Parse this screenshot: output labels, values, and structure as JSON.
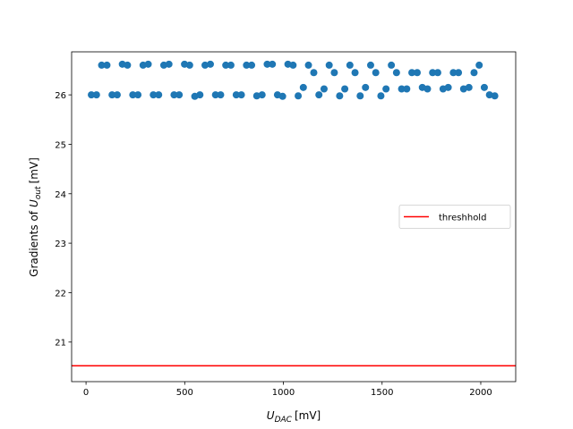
{
  "chart_data": {
    "type": "scatter",
    "xlabel": {
      "symbol": "U",
      "subscript": "DAC",
      "unit": "[mV]"
    },
    "ylabel": {
      "prefix": "Gradients of",
      "symbol": "U",
      "subscript": "out",
      "unit": "[mV]"
    },
    "xlim": [
      -73,
      2177
    ],
    "ylim": [
      20.2,
      26.87
    ],
    "xticks": [
      0,
      500,
      1000,
      1500,
      2000
    ],
    "yticks": [
      21,
      22,
      23,
      24,
      25,
      26
    ],
    "color": "#1f77b4",
    "x": [
      27,
      53,
      79,
      106,
      132,
      158,
      184,
      210,
      237,
      263,
      289,
      315,
      341,
      368,
      394,
      420,
      446,
      472,
      499,
      525,
      551,
      577,
      603,
      630,
      656,
      682,
      708,
      734,
      761,
      787,
      813,
      839,
      865,
      892,
      918,
      944,
      970,
      996,
      1023,
      1049,
      1075,
      1101,
      1127,
      1154,
      1180,
      1206,
      1232,
      1258,
      1285,
      1311,
      1337,
      1363,
      1389,
      1416,
      1442,
      1468,
      1494,
      1520,
      1547,
      1573,
      1599,
      1625,
      1651,
      1678,
      1704,
      1730,
      1756,
      1782,
      1809,
      1835,
      1861,
      1887,
      1913,
      1940,
      1966,
      1992,
      2018,
      2044,
      2071
    ],
    "values": [
      26.0,
      26.0,
      26.6,
      26.6,
      26.0,
      26.0,
      26.62,
      26.6,
      26.0,
      26.0,
      26.6,
      26.62,
      26.0,
      26.0,
      26.6,
      26.62,
      26.0,
      26.0,
      26.62,
      26.6,
      25.97,
      26.0,
      26.6,
      26.62,
      26.0,
      26.0,
      26.6,
      26.6,
      26.0,
      26.0,
      26.6,
      26.6,
      25.98,
      26.0,
      26.62,
      26.62,
      26.0,
      25.97,
      26.62,
      26.6,
      25.98,
      26.15,
      26.6,
      26.45,
      26.0,
      26.12,
      26.6,
      26.45,
      25.98,
      26.12,
      26.6,
      26.45,
      25.98,
      26.15,
      26.6,
      26.45,
      25.98,
      26.12,
      26.6,
      26.45,
      26.12,
      26.12,
      26.45,
      26.45,
      26.15,
      26.12,
      26.45,
      26.45,
      26.12,
      26.15,
      26.45,
      26.45,
      26.12,
      26.15,
      26.45,
      26.6,
      26.15,
      26.0,
      25.98
    ],
    "hlines": [
      {
        "name": "threshhold",
        "color": "red",
        "y": 20.52
      }
    ],
    "legend": "center right"
  }
}
